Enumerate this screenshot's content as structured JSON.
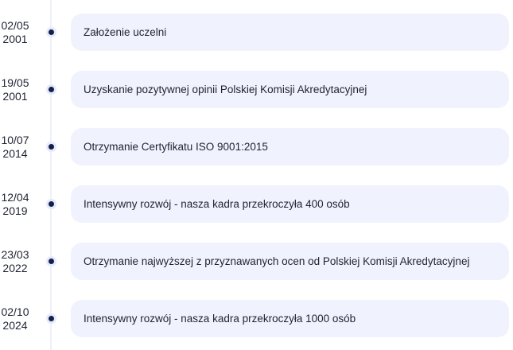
{
  "timeline": [
    {
      "date": "02/05",
      "year": "2001",
      "text": "Założenie uczelni"
    },
    {
      "date": "19/05",
      "year": "2001",
      "text": "Uzyskanie pozytywnej opinii Polskiej Komisji Akredytacyjnej"
    },
    {
      "date": "10/07",
      "year": "2014",
      "text": "Otrzymanie Certyfikatu ISO 9001:2015"
    },
    {
      "date": "12/04",
      "year": "2019",
      "text": "Intensywny rozwój - nasza kadra przekroczyła 400 osób"
    },
    {
      "date": "23/03",
      "year": "2022",
      "text": "Otrzymanie najwyższej z przyznawanych ocen od Polskiej Komisji Akredytacyjnej"
    },
    {
      "date": "02/10",
      "year": "2024",
      "text": "Intensywny rozwój - nasza kadra przekroczyła 1000 osób"
    }
  ]
}
